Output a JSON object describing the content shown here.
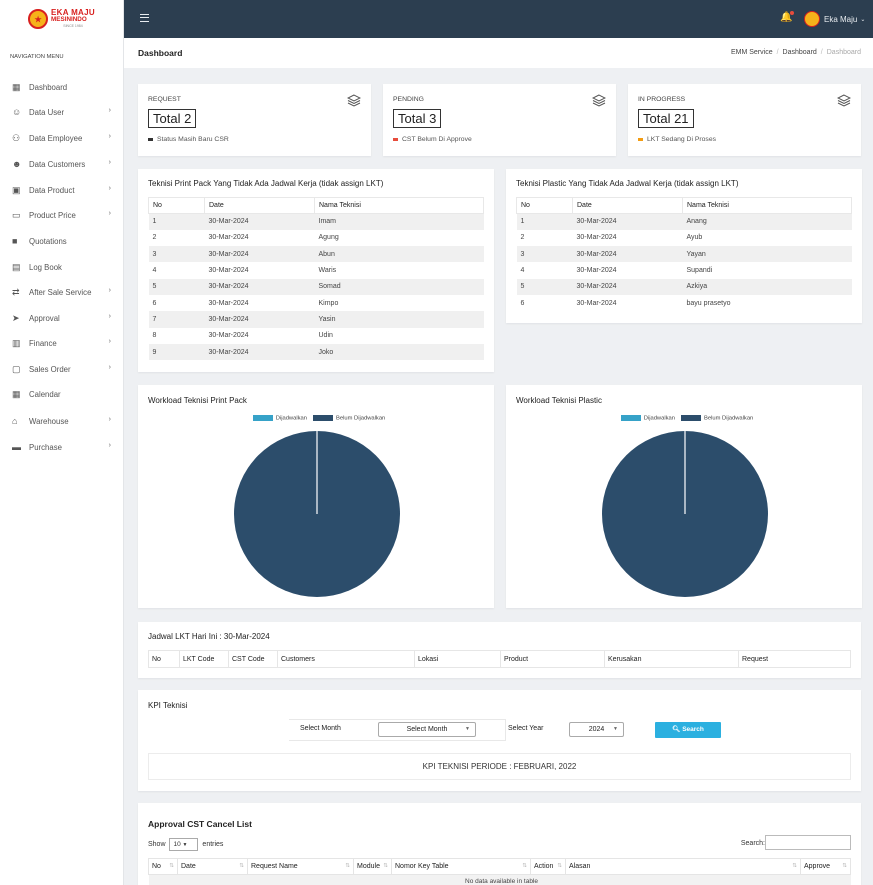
{
  "brand": {
    "line1": "EKA MAJU",
    "line2": "MESININDO",
    "line3": "SINCE 1984"
  },
  "sidebar": {
    "heading": "NAVIGATION MENU",
    "items": [
      {
        "label": "Dashboard",
        "icon": "dashboard-icon",
        "chevron": false
      },
      {
        "label": "Data User",
        "icon": "user-cog-icon",
        "chevron": true
      },
      {
        "label": "Data Employee",
        "icon": "users-icon",
        "chevron": true
      },
      {
        "label": "Data Customers",
        "icon": "user-tie-icon",
        "chevron": true
      },
      {
        "label": "Data Product",
        "icon": "briefcase-icon",
        "chevron": true
      },
      {
        "label": "Product Price",
        "icon": "money-icon",
        "chevron": true
      },
      {
        "label": "Quotations",
        "icon": "lock-icon",
        "chevron": false
      },
      {
        "label": "Log Book",
        "icon": "book-icon",
        "chevron": false
      },
      {
        "label": "After Sale Service",
        "icon": "handshake-icon",
        "chevron": true
      },
      {
        "label": "Approval",
        "icon": "send-icon",
        "chevron": true
      },
      {
        "label": "Finance",
        "icon": "finance-icon",
        "chevron": true
      },
      {
        "label": "Sales Order",
        "icon": "truck-icon",
        "chevron": true
      },
      {
        "label": "Calendar",
        "icon": "calendar-icon",
        "chevron": false
      },
      {
        "label": "Warehouse",
        "icon": "warehouse-icon",
        "chevron": true
      },
      {
        "label": "Purchase",
        "icon": "card-icon",
        "chevron": true
      }
    ]
  },
  "topbar": {
    "user": "Eka Maju"
  },
  "page": {
    "title": "Dashboard",
    "crumb1": "EMM Service",
    "crumb2": "Dashboard",
    "crumb3": "Dashboard"
  },
  "stats": [
    {
      "label": "REQUEST",
      "total": "Total 2",
      "sub": "Status Masih Baru CSR",
      "color": "#333333"
    },
    {
      "label": "PENDING",
      "total": "Total 3",
      "sub": "CST Belum Di Approve",
      "color": "#e74c3c"
    },
    {
      "label": "IN PROGRESS",
      "total": "Total 21",
      "sub": "LKT Sedang Di Proses",
      "color": "#f39c12"
    }
  ],
  "printpack": {
    "title": "Teknisi Print Pack Yang Tidak Ada Jadwal Kerja (tidak assign LKT)",
    "headers": [
      "No",
      "Date",
      "Nama Teknisi"
    ],
    "rows": [
      [
        "1",
        "30-Mar-2024",
        "Imam"
      ],
      [
        "2",
        "30-Mar-2024",
        "Agung"
      ],
      [
        "3",
        "30-Mar-2024",
        "Abun"
      ],
      [
        "4",
        "30-Mar-2024",
        "Waris"
      ],
      [
        "5",
        "30-Mar-2024",
        "Somad"
      ],
      [
        "6",
        "30-Mar-2024",
        "Kimpo"
      ],
      [
        "7",
        "30-Mar-2024",
        "Yasin"
      ],
      [
        "8",
        "30-Mar-2024",
        "Udin"
      ],
      [
        "9",
        "30-Mar-2024",
        "Joko"
      ]
    ]
  },
  "plastic": {
    "title": "Teknisi Plastic Yang Tidak Ada Jadwal Kerja (tidak assign LKT)",
    "headers": [
      "No",
      "Date",
      "Nama Teknisi"
    ],
    "rows": [
      [
        "1",
        "30-Mar-2024",
        "Anang"
      ],
      [
        "2",
        "30-Mar-2024",
        "Ayub"
      ],
      [
        "3",
        "30-Mar-2024",
        "Yayan"
      ],
      [
        "4",
        "30-Mar-2024",
        "Supandi"
      ],
      [
        "5",
        "30-Mar-2024",
        "Azkiya"
      ],
      [
        "6",
        "30-Mar-2024",
        "bayu prasetyo"
      ]
    ]
  },
  "chart_data": [
    {
      "type": "pie",
      "title": "Workload Teknisi Print Pack",
      "legend": [
        "Dijadwalkan",
        "Belum Dijadwalkan"
      ],
      "colors": [
        "#36a2c8",
        "#2c4d6b"
      ],
      "values": [
        0,
        100
      ]
    },
    {
      "type": "pie",
      "title": "Workload Teknisi Plastic",
      "legend": [
        "Dijadwalkan",
        "Belum Dijadwalkan"
      ],
      "colors": [
        "#36a2c8",
        "#2c4d6b"
      ],
      "values": [
        0,
        100
      ]
    }
  ],
  "jadwal": {
    "title": "Jadwal LKT Hari Ini : 30-Mar-2024",
    "headers": [
      "No",
      "LKT Code",
      "CST Code",
      "Customers",
      "Lokasi",
      "Product",
      "Kerusakan",
      "Request"
    ]
  },
  "kpi": {
    "title": "KPI Teknisi",
    "month_label": "Select Month",
    "month_value": "Select Month",
    "year_label": "Select Year",
    "year_value": "2024",
    "search": "Search",
    "period": "KPI TEKNISI PERIODE : FEBRUARI, 2022"
  },
  "approval": {
    "title": "Approval CST Cancel List",
    "show": "Show",
    "entries_value": "10",
    "entries": "entries",
    "search_label": "Search:",
    "headers": [
      "No",
      "Date",
      "Request Name",
      "Module",
      "Nomor Key Table",
      "Action",
      "Alasan",
      "Approve"
    ],
    "empty": "No data available in table"
  }
}
